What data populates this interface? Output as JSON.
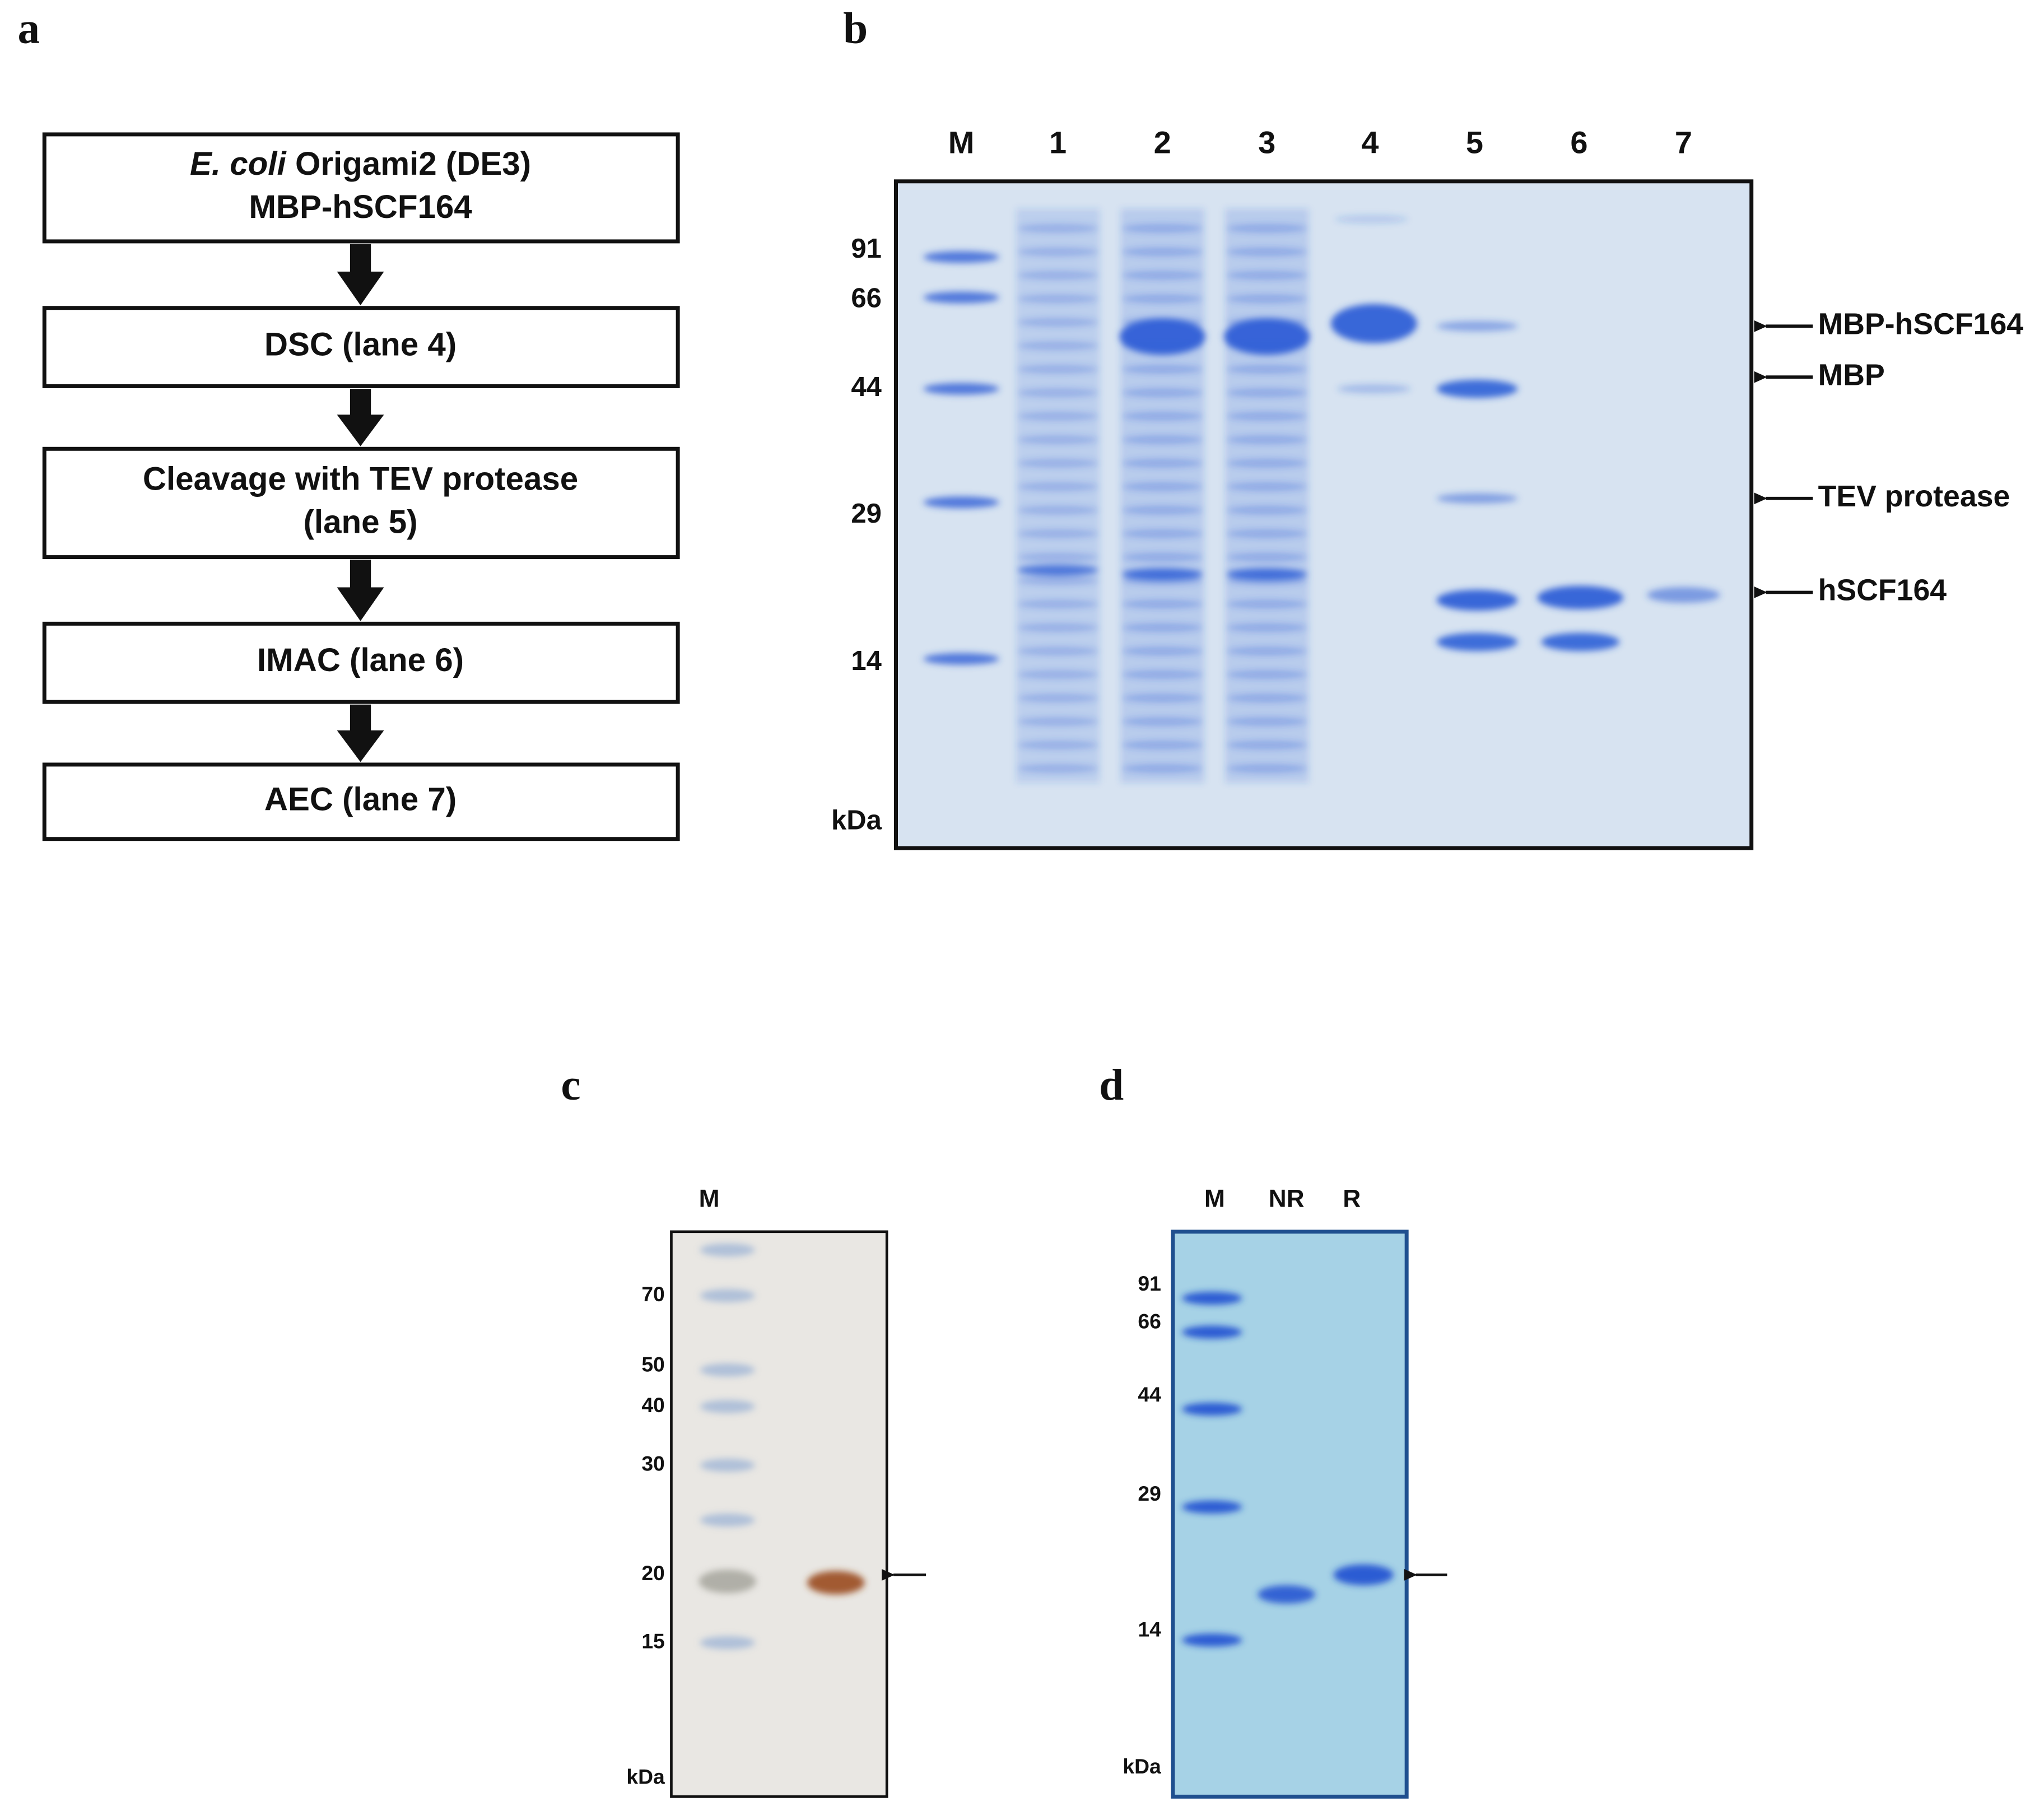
{
  "panel_a": {
    "label": "a",
    "steps": [
      {
        "lines": [
          {
            "italic": "E. coli",
            "text": "Origami2 (DE3)"
          },
          {
            "text": "MBP-hSCF164"
          }
        ]
      },
      {
        "lines": [
          {
            "text": "DSC (lane 4)"
          }
        ]
      },
      {
        "lines": [
          {
            "text": "Cleavage with TEV protease"
          },
          {
            "text": "(lane 5)"
          }
        ]
      },
      {
        "lines": [
          {
            "text": "IMAC (lane 6)"
          }
        ]
      },
      {
        "lines": [
          {
            "text": "AEC (lane 7)"
          }
        ]
      }
    ]
  },
  "panel_b": {
    "label": "b",
    "lanes": [
      "M",
      "1",
      "2",
      "3",
      "4",
      "5",
      "6",
      "7"
    ],
    "markers": [
      "91",
      "66",
      "44",
      "29",
      "14"
    ],
    "unit": "kDa",
    "annotations": [
      "MBP-hSCF164",
      "MBP",
      "TEV protease",
      "hSCF164"
    ]
  },
  "panel_c": {
    "label": "c",
    "lanes": [
      "M"
    ],
    "markers": [
      "70",
      "50",
      "40",
      "30",
      "20",
      "15"
    ],
    "unit": "kDa"
  },
  "panel_d": {
    "label": "d",
    "lanes": [
      "M",
      "NR",
      "R"
    ],
    "markers": [
      "91",
      "66",
      "44",
      "29",
      "14"
    ],
    "unit": "kDa"
  }
}
